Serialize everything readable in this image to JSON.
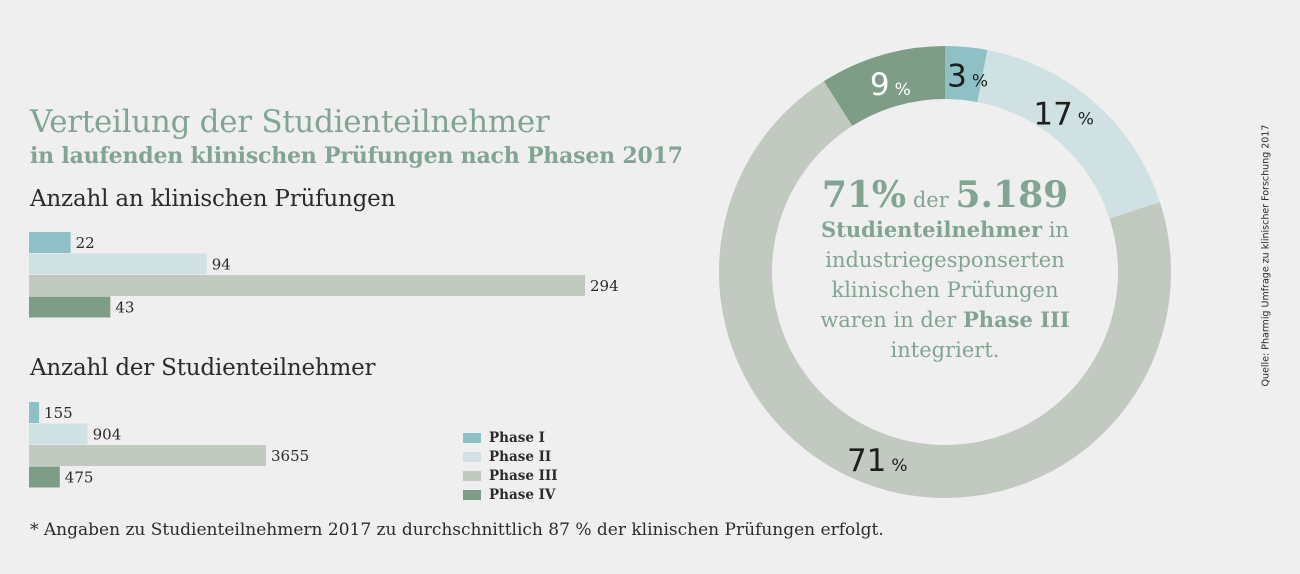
{
  "title": "Verteilung der Studienteilnehmer",
  "subtitle": "in laufenden klinischen Prüfungen nach Phasen 2017",
  "colors": {
    "phase1": "#8ec0c5",
    "phase2": "#cfe1e2",
    "phase3": "#c1c9c0",
    "phase4": "#7e9d87",
    "accent_text": "#82a593"
  },
  "chart_data": [
    {
      "type": "bar",
      "orientation": "horizontal",
      "title": "Anzahl an klinischen Prüfungen",
      "categories": [
        "Phase I",
        "Phase II",
        "Phase III",
        "Phase IV"
      ],
      "values": [
        22,
        94,
        294,
        43
      ],
      "value_labels": [
        "22",
        "94",
        "294",
        "43"
      ]
    },
    {
      "type": "bar",
      "orientation": "horizontal",
      "title": "Anzahl der Studienteilnehmer",
      "categories": [
        "Phase I",
        "Phase II",
        "Phase III",
        "Phase IV"
      ],
      "values": [
        155,
        904,
        3655,
        475
      ],
      "value_labels": [
        "155",
        "904",
        "3655",
        "475"
      ]
    },
    {
      "type": "pie",
      "style": "donut",
      "categories": [
        "Phase I",
        "Phase II",
        "Phase III",
        "Phase IV"
      ],
      "values": [
        3,
        17,
        71,
        9
      ],
      "value_labels": [
        "3",
        "17",
        "71",
        "9"
      ],
      "unit": "%"
    }
  ],
  "legend": {
    "placement": "bottom-center",
    "items": [
      "Phase I",
      "Phase II",
      "Phase III",
      "Phase IV"
    ]
  },
  "center": {
    "pct": "71%",
    "der": "der",
    "count": "5.189",
    "line2_bold": "Studienteilnehmer",
    "line2_rest": "in",
    "line3": "industriegesponserten",
    "line4": "klinischen Prüfungen",
    "line5_pre": "waren in der",
    "line5_bold": "Phase III",
    "line6": "integriert."
  },
  "footnote": "* Angaben zu Studienteilnehmern 2017 zu durchschnittlich 87 % der klinischen Prüfungen erfolgt.",
  "source": "Quelle: Pharmig Umfrage zu klinischer Forschung 2017"
}
